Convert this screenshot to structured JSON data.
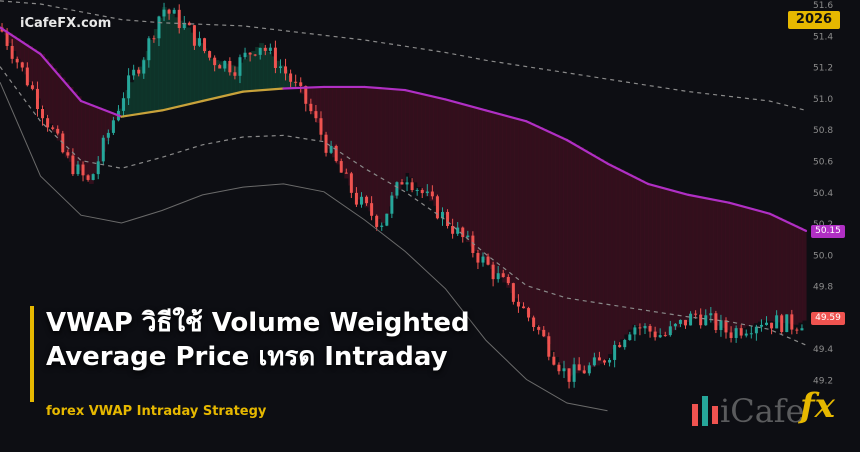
{
  "brand": {
    "site": "iCafeFX.com"
  },
  "year_badge": "2026",
  "headline": {
    "line1": "VWAP วิธีใช้ Volume Weighted",
    "line2": "Average Price เทรด Intraday",
    "subtitle": "forex VWAP Intraday Strategy"
  },
  "logo": {
    "text": "iCafe",
    "mark": "fx"
  },
  "colors": {
    "bull": "#26a69a",
    "bear": "#ef5350",
    "vwap_above": "#c8a23a",
    "vwap_below": "#b02fc4",
    "band": "#8a8a8a",
    "accent": "#e6b800"
  },
  "chart_data": {
    "type": "line",
    "title": "",
    "xlabel": "",
    "ylabel": "",
    "ylim": [
      49.0,
      51.6
    ],
    "y_ticks": [
      51.6,
      51.4,
      51.2,
      51.0,
      50.8,
      50.6,
      50.4,
      50.2,
      50.0,
      49.8,
      49.6,
      49.4,
      49.2
    ],
    "grid": false,
    "price_labels": [
      {
        "value": 50.15,
        "text": "50.15",
        "color": "#b02fc4"
      },
      {
        "value": 49.59,
        "text": "49.59",
        "color": "#ef5350"
      }
    ],
    "series": [
      {
        "role": "vwap",
        "x": [
          0,
          10,
          20,
          30,
          40,
          50,
          60,
          70,
          80,
          90,
          100,
          110,
          120,
          130,
          140,
          150,
          160,
          170,
          180,
          190,
          199
        ],
        "y": [
          51.45,
          51.28,
          50.98,
          50.88,
          50.92,
          50.98,
          51.04,
          51.06,
          51.07,
          51.07,
          51.05,
          50.99,
          50.92,
          50.85,
          50.73,
          50.58,
          50.45,
          50.38,
          50.33,
          50.26,
          50.15
        ]
      },
      {
        "role": "upper_band",
        "x": [
          0,
          10,
          20,
          30,
          40,
          50,
          60,
          70,
          80,
          90,
          100,
          110,
          120,
          130,
          140,
          150,
          160,
          170,
          180,
          190,
          199
        ],
        "y": [
          51.62,
          51.6,
          51.55,
          51.5,
          51.48,
          51.47,
          51.46,
          51.43,
          51.4,
          51.37,
          51.33,
          51.29,
          51.24,
          51.2,
          51.16,
          51.12,
          51.08,
          51.04,
          51.01,
          50.98,
          50.92
        ]
      },
      {
        "role": "mid_band",
        "x": [
          0,
          10,
          20,
          30,
          40,
          50,
          60,
          70,
          80,
          90,
          100,
          110,
          120,
          130,
          140,
          150,
          160,
          170,
          180,
          190,
          199
        ],
        "y": [
          51.2,
          50.85,
          50.6,
          50.55,
          50.62,
          50.7,
          50.75,
          50.76,
          50.72,
          50.55,
          50.4,
          50.22,
          50.0,
          49.8,
          49.72,
          49.68,
          49.64,
          49.6,
          49.57,
          49.52,
          49.42
        ]
      },
      {
        "role": "lower_band",
        "x": [
          0,
          10,
          20,
          30,
          40,
          50,
          60,
          70,
          80,
          90,
          100,
          110,
          120,
          130,
          140,
          150
        ],
        "y": [
          51.1,
          50.5,
          50.25,
          50.2,
          50.28,
          50.38,
          50.43,
          50.45,
          50.4,
          50.22,
          50.02,
          49.78,
          49.45,
          49.2,
          49.05,
          49.0
        ]
      },
      {
        "role": "price",
        "x": [
          0,
          8,
          16,
          22,
          30,
          36,
          40,
          46,
          52,
          58,
          64,
          70,
          76,
          82,
          88,
          94,
          100,
          108,
          116,
          124,
          132,
          140,
          148,
          156,
          164,
          172,
          180,
          188,
          196,
          199
        ],
        "y": [
          51.45,
          51.05,
          50.62,
          50.45,
          51.0,
          51.3,
          51.58,
          51.45,
          51.25,
          51.2,
          51.35,
          51.18,
          50.95,
          50.62,
          50.35,
          50.2,
          50.52,
          50.28,
          50.05,
          49.82,
          49.55,
          49.22,
          49.3,
          49.55,
          49.48,
          49.62,
          49.5,
          49.58,
          49.55,
          49.59
        ]
      }
    ]
  }
}
